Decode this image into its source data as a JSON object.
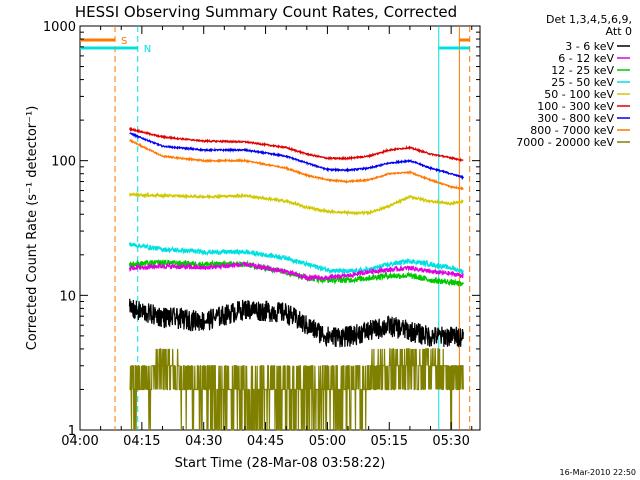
{
  "chart_data": {
    "type": "line",
    "title": "HESSI Observing Summary Count Rates, Corrected",
    "xlabel": "Start Time (28-Mar-08 03:58:22)",
    "ylabel": "Corrected Count Rate (s⁻¹ detector⁻¹)",
    "ylog": true,
    "ylim": [
      1,
      1000
    ],
    "xlim_minutes": [
      0,
      97
    ],
    "xtick_minutes": [
      0,
      15,
      30,
      45,
      60,
      75,
      90
    ],
    "xtick_labels": [
      "04:00",
      "04:15",
      "04:30",
      "04:45",
      "05:00",
      "05:15",
      "05:30"
    ],
    "yticks": [
      1,
      10,
      100,
      1000
    ],
    "ytick_labels": [
      "1",
      "10",
      "100",
      "1000"
    ],
    "legend_header": [
      "Det 1,3,4,5,6,9,",
      "Att 0"
    ],
    "legend_position": "right",
    "footer_date": "16-Mar-2010 22:50",
    "data_start_min": 12,
    "data_end_min": 93,
    "key_minutes": [
      12,
      20,
      30,
      40,
      50,
      55,
      60,
      65,
      70,
      75,
      80,
      85,
      90,
      93
    ],
    "series": [
      {
        "name": "3 - 6 keV",
        "color": "#000000",
        "noise": 0.18,
        "values": [
          8,
          7,
          6.5,
          8,
          7.5,
          6,
          5,
          5,
          5.5,
          6,
          5.5,
          5,
          5,
          5
        ]
      },
      {
        "name": "6 - 12 keV",
        "color": "#e000e0",
        "noise": 0.04,
        "values": [
          16,
          16.5,
          16,
          17,
          15,
          13.5,
          13.5,
          14,
          15,
          15.5,
          16,
          15,
          14.5,
          14
        ]
      },
      {
        "name": "12 - 25 keV",
        "color": "#00c800",
        "noise": 0.05,
        "values": [
          17,
          17.5,
          17,
          17,
          15,
          13.5,
          13,
          13,
          13.5,
          14,
          14,
          13,
          12.5,
          12
        ]
      },
      {
        "name": "25 - 50 keV",
        "color": "#00e0e0",
        "noise": 0.04,
        "values": [
          24,
          22,
          21,
          21,
          19,
          17,
          15.5,
          15,
          15.5,
          17,
          18,
          17,
          16,
          15
        ]
      },
      {
        "name": "50 - 100 keV",
        "color": "#d0c800",
        "noise": 0.02,
        "values": [
          56,
          55,
          54,
          55,
          50,
          45,
          42,
          41,
          41,
          46,
          54,
          50,
          48,
          50
        ]
      },
      {
        "name": "100 - 300 keV",
        "color": "#dd0000",
        "noise": 0.012,
        "values": [
          172,
          150,
          140,
          138,
          125,
          112,
          104,
          104,
          108,
          120,
          125,
          112,
          105,
          100
        ]
      },
      {
        "name": "300 - 800 keV",
        "color": "#0000ee",
        "noise": 0.012,
        "values": [
          160,
          128,
          120,
          120,
          108,
          96,
          86,
          85,
          88,
          96,
          100,
          88,
          80,
          75
        ]
      },
      {
        "name": "800 - 7000 keV",
        "color": "#ff7800",
        "noise": 0.012,
        "values": [
          142,
          108,
          100,
          100,
          88,
          78,
          72,
          70,
          72,
          80,
          82,
          72,
          64,
          62
        ]
      },
      {
        "name": "7000 - 20000 keV",
        "color": "#808000",
        "noise": 0,
        "values": [
          2,
          3,
          2,
          2,
          2,
          2,
          2,
          2,
          2.5,
          3,
          3,
          3,
          2.5,
          2.5
        ]
      }
    ],
    "vertical_markers": [
      {
        "minute": 8.5,
        "color": "#ff7800",
        "dashed": true
      },
      {
        "minute": 14,
        "color": "#00e0e0",
        "dashed": true
      },
      {
        "minute": 87,
        "color": "#00e0e0",
        "dashed": false
      },
      {
        "minute": 92,
        "color": "#ff7800",
        "dashed": false
      },
      {
        "minute": 94.5,
        "color": "#ff7800",
        "dashed": true
      }
    ],
    "top_bars": [
      {
        "label": "S",
        "color": "#ff7800",
        "segments": [
          [
            0,
            8.5
          ],
          [
            92,
            94.5
          ]
        ]
      },
      {
        "label": "N",
        "color": "#00e0e0",
        "segments": [
          [
            0,
            14
          ],
          [
            87,
            94.5
          ]
        ]
      }
    ]
  }
}
